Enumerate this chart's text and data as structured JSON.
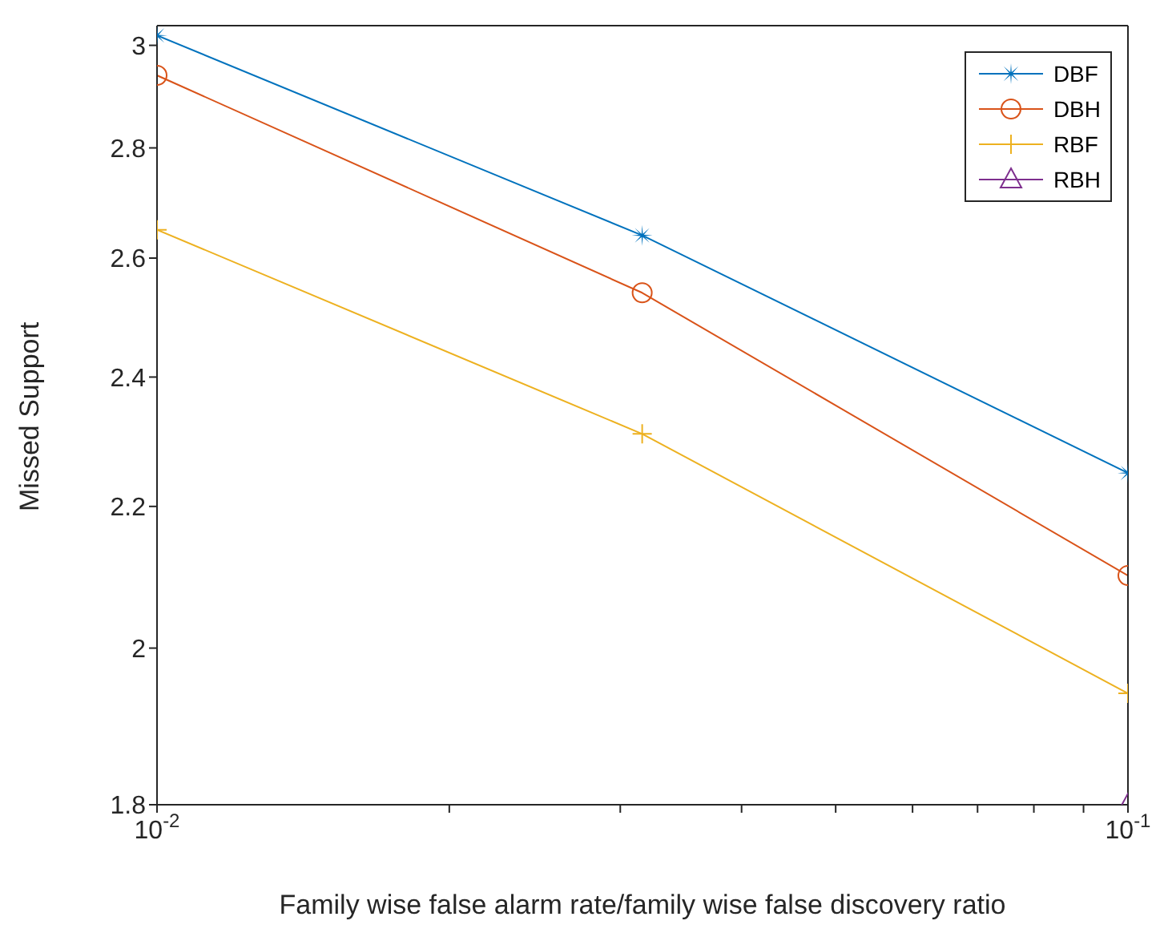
{
  "chart_data": {
    "type": "line",
    "xlabel": "Family wise false alarm rate/family wise false discovery ratio",
    "ylabel": "Missed Support",
    "x": [
      0.01,
      0.0316,
      0.1
    ],
    "series": [
      {
        "name": "DBF",
        "color": "#0072bd",
        "marker": "star",
        "values": [
          3.02,
          2.64,
          2.25
        ]
      },
      {
        "name": "DBH",
        "color": "#d95319",
        "marker": "circle",
        "values": [
          2.94,
          2.54,
          2.1
        ]
      },
      {
        "name": "RBF",
        "color": "#edb120",
        "marker": "cross",
        "values": [
          2.65,
          2.31,
          1.94
        ]
      },
      {
        "name": "RBH",
        "color": "#7e2f8e",
        "marker": "triangle",
        "values": [
          null,
          null,
          1.8
        ]
      }
    ],
    "log": "xy",
    "xlim": [
      0.01,
      0.1
    ],
    "xticks": [
      {
        "value": 0.01,
        "label": "10$^{-2}$"
      },
      {
        "value": 0.02,
        "label": null
      },
      {
        "value": 0.03,
        "label": null
      },
      {
        "value": 0.04,
        "label": null
      },
      {
        "value": 0.05,
        "label": null
      },
      {
        "value": 0.06,
        "label": null
      },
      {
        "value": 0.07,
        "label": null
      },
      {
        "value": 0.08,
        "label": null
      },
      {
        "value": 0.09,
        "label": null
      },
      {
        "value": 0.1,
        "label": "10$^{-1}$"
      }
    ],
    "ylim": [
      1.8,
      3.04
    ],
    "yticks": [
      1.8,
      2,
      2.2,
      2.4,
      2.6,
      2.8,
      3
    ],
    "grid": false,
    "legend": "top right"
  }
}
